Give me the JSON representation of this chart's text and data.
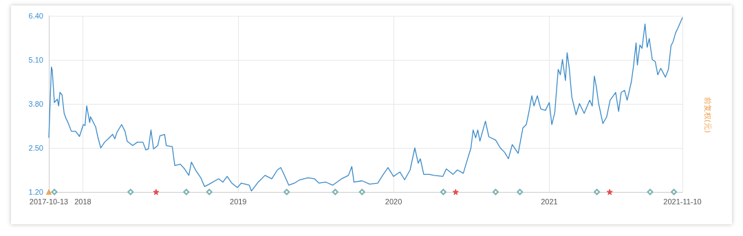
{
  "chart_data": {
    "type": "line",
    "ylabel": "前复权(元)",
    "grid": true,
    "xlim": [
      "2017-10-13",
      "2021-11-10"
    ],
    "xticks": [
      "2017-10-13",
      {
        "value": "2018-01-01",
        "label": "2018"
      },
      {
        "value": "2019-01-01",
        "label": "2019"
      },
      {
        "value": "2020-01-01",
        "label": "2020"
      },
      {
        "value": "2021-01-01",
        "label": "2021"
      },
      "2021-11-10"
    ],
    "ylim": [
      1.2,
      6.4
    ],
    "yticks": [
      {
        "value": 1.2,
        "label": "1.20"
      },
      {
        "value": 2.5,
        "label": "2.50"
      },
      {
        "value": 3.8,
        "label": "3.80"
      },
      {
        "value": 5.1,
        "label": "5.10"
      },
      {
        "value": 6.4,
        "label": "6.40"
      }
    ],
    "series": [
      {
        "color": "#3a8ac8",
        "marker": "none",
        "x": [
          "2017-10-13",
          "2017-10-19",
          "2017-10-21",
          "2017-10-26",
          "2017-11-02",
          "2017-11-05",
          "2017-11-08",
          "2017-11-13",
          "2017-11-18",
          "2017-11-23",
          "2017-11-27",
          "2017-12-05",
          "2017-12-15",
          "2017-12-24",
          "2018-01-02",
          "2018-01-06",
          "2018-01-10",
          "2018-01-17",
          "2018-01-19",
          "2018-01-31",
          "2018-02-05",
          "2018-02-12",
          "2018-02-21",
          "2018-03-04",
          "2018-03-12",
          "2018-03-17",
          "2018-03-22",
          "2018-04-02",
          "2018-04-10",
          "2018-04-15",
          "2018-04-28",
          "2018-05-09",
          "2018-05-22",
          "2018-05-29",
          "2018-06-04",
          "2018-06-10",
          "2018-06-16",
          "2018-06-26",
          "2018-07-01",
          "2018-07-12",
          "2018-07-16",
          "2018-07-30",
          "2018-08-05",
          "2018-08-18",
          "2018-08-28",
          "2018-09-07",
          "2018-09-13",
          "2018-09-24",
          "2018-10-05",
          "2018-10-14",
          "2018-10-25",
          "2018-11-16",
          "2018-11-26",
          "2018-12-06",
          "2018-12-17",
          "2018-12-30",
          "2019-01-08",
          "2019-01-27",
          "2019-02-01",
          "2019-02-17",
          "2019-03-05",
          "2019-03-21",
          "2019-04-03",
          "2019-04-11",
          "2019-04-16",
          "2019-04-30",
          "2019-05-13",
          "2019-05-26",
          "2019-06-14",
          "2019-06-29",
          "2019-07-10",
          "2019-07-26",
          "2019-08-11",
          "2019-09-01",
          "2019-09-17",
          "2019-09-25",
          "2019-09-30",
          "2019-10-19",
          "2019-11-06",
          "2019-11-25",
          "2019-12-08",
          "2019-12-19",
          "2020-01-01",
          "2020-01-16",
          "2020-01-27",
          "2020-02-09",
          "2020-02-20",
          "2020-02-28",
          "2020-03-04",
          "2020-03-12",
          "2020-03-25",
          "2020-04-05",
          "2020-04-26",
          "2020-05-04",
          "2020-05-20",
          "2020-05-30",
          "2020-06-13",
          "2020-06-20",
          "2020-07-01",
          "2020-07-06",
          "2020-07-12",
          "2020-07-17",
          "2020-07-22",
          "2020-08-04",
          "2020-08-12",
          "2020-08-28",
          "2020-09-08",
          "2020-09-18",
          "2020-09-27",
          "2020-10-06",
          "2020-10-20",
          "2020-10-31",
          "2020-11-08",
          "2020-11-14",
          "2020-11-21",
          "2020-11-26",
          "2020-12-04",
          "2020-12-12",
          "2020-12-23",
          "2021-01-01",
          "2021-01-07",
          "2021-01-14",
          "2021-01-22",
          "2021-01-27",
          "2021-02-01",
          "2021-02-08",
          "2021-02-12",
          "2021-02-17",
          "2021-02-23",
          "2021-03-05",
          "2021-03-13",
          "2021-03-24",
          "2021-04-06",
          "2021-04-12",
          "2021-04-17",
          "2021-04-22",
          "2021-04-27",
          "2021-05-07",
          "2021-05-16",
          "2021-05-24",
          "2021-06-06",
          "2021-06-13",
          "2021-06-19",
          "2021-06-27",
          "2021-07-03",
          "2021-07-13",
          "2021-07-18",
          "2021-07-24",
          "2021-07-27",
          "2021-08-02",
          "2021-08-07",
          "2021-08-14",
          "2021-08-19",
          "2021-08-24",
          "2021-08-31",
          "2021-09-07",
          "2021-09-13",
          "2021-09-20",
          "2021-10-01",
          "2021-10-08",
          "2021-10-14",
          "2021-10-19",
          "2021-10-25",
          "2021-10-30",
          "2021-11-10"
        ],
        "values": [
          2.8,
          4.89,
          4.79,
          3.84,
          3.94,
          3.74,
          4.14,
          4.07,
          3.52,
          3.35,
          3.25,
          2.99,
          2.99,
          2.84,
          3.19,
          3.16,
          3.74,
          3.25,
          3.42,
          3.12,
          2.83,
          2.5,
          2.67,
          2.8,
          2.9,
          2.77,
          2.96,
          3.19,
          2.99,
          2.7,
          2.57,
          2.67,
          2.67,
          2.44,
          2.47,
          3.03,
          2.47,
          2.57,
          2.86,
          2.9,
          2.57,
          2.54,
          1.98,
          2.02,
          1.88,
          1.69,
          2.08,
          1.82,
          1.62,
          1.36,
          1.43,
          1.59,
          1.49,
          1.66,
          1.46,
          1.33,
          1.46,
          1.4,
          1.23,
          1.49,
          1.69,
          1.59,
          1.85,
          1.92,
          1.79,
          1.4,
          1.46,
          1.56,
          1.62,
          1.59,
          1.46,
          1.49,
          1.4,
          1.59,
          1.69,
          1.95,
          1.49,
          1.53,
          1.43,
          1.46,
          1.72,
          1.92,
          1.66,
          1.79,
          1.56,
          1.85,
          2.5,
          2.05,
          2.18,
          1.72,
          1.72,
          1.69,
          1.66,
          1.88,
          1.72,
          1.85,
          1.75,
          2.05,
          2.5,
          3.03,
          2.8,
          3.03,
          2.7,
          3.29,
          2.83,
          2.73,
          2.5,
          2.37,
          2.18,
          2.6,
          2.34,
          3.09,
          3.19,
          3.55,
          4.04,
          3.74,
          4.04,
          3.65,
          3.61,
          3.84,
          3.19,
          3.55,
          4.82,
          4.66,
          5.11,
          4.49,
          5.31,
          4.85,
          4.0,
          3.48,
          3.81,
          3.52,
          3.91,
          3.74,
          4.62,
          4.27,
          3.81,
          3.22,
          3.42,
          3.91,
          4.14,
          3.58,
          4.14,
          4.2,
          3.91,
          4.46,
          4.92,
          5.6,
          4.95,
          5.54,
          5.44,
          6.16,
          5.47,
          5.73,
          5.11,
          5.05,
          4.66,
          4.85,
          4.59,
          4.82,
          5.51,
          5.64,
          5.9,
          6.03,
          6.35
        ]
      },
      {
        "type": "scatter",
        "color": "#e8963c",
        "marker": "triangle",
        "x": [
          "2017-10-13"
        ],
        "values": [
          1.2
        ]
      },
      {
        "type": "scatter",
        "color": "#5a9e9e",
        "marker": "diamond",
        "x": [
          "2017-10-26",
          "2018-04-23",
          "2018-09-01",
          "2018-10-25",
          "2019-04-25",
          "2019-08-17",
          "2019-10-19",
          "2020-04-27",
          "2020-08-28",
          "2020-10-24",
          "2021-04-23",
          "2021-08-26",
          "2021-10-21"
        ],
        "values": [
          1.2,
          1.2,
          1.2,
          1.2,
          1.2,
          1.2,
          1.2,
          1.2,
          1.2,
          1.2,
          1.2,
          1.2,
          1.2
        ]
      },
      {
        "type": "scatter",
        "color": "#e03030",
        "marker": "star",
        "x": [
          "2018-06-22",
          "2020-05-26",
          "2021-05-23"
        ],
        "values": [
          1.2,
          1.2,
          1.2
        ]
      }
    ]
  }
}
